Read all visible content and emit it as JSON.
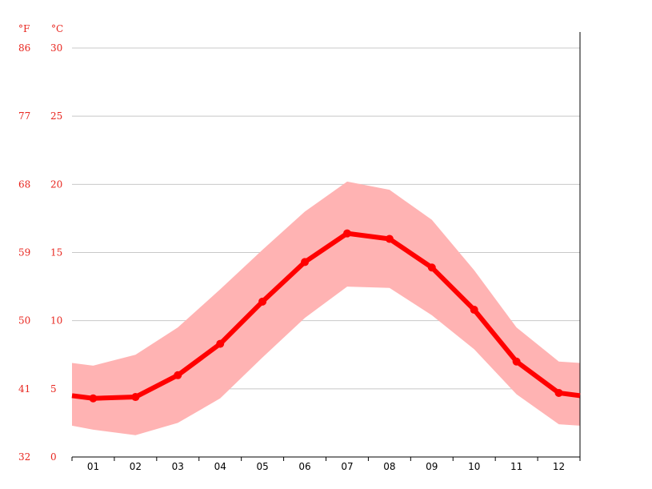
{
  "chart_data": {
    "type": "line",
    "categories": [
      "01",
      "02",
      "03",
      "04",
      "05",
      "06",
      "07",
      "08",
      "09",
      "10",
      "11",
      "12"
    ],
    "series": [
      {
        "values": [
          4.3,
          4.4,
          6.0,
          8.3,
          11.4,
          14.3,
          16.4,
          16.0,
          13.9,
          10.8,
          7.0,
          4.7
        ]
      }
    ],
    "band": {
      "upper": [
        6.7,
        7.5,
        9.5,
        12.3,
        15.2,
        18.0,
        20.2,
        19.6,
        17.4,
        13.7,
        9.5,
        7.0
      ],
      "lower": [
        2.0,
        1.6,
        2.5,
        4.3,
        7.3,
        10.2,
        12.5,
        12.4,
        10.4,
        7.9,
        4.6,
        2.4
      ],
      "edge_upper": 6.9,
      "edge_lower": 2.3
    },
    "series_edge": 4.5,
    "ylim": [
      0,
      30
    ],
    "y_ticks_c": [
      "0",
      "5",
      "10",
      "15",
      "20",
      "25",
      "30"
    ],
    "y_ticks_f": [
      "32",
      "41",
      "50",
      "59",
      "68",
      "77",
      "86"
    ],
    "ylabel_f": "°F",
    "ylabel_c": "°C",
    "grid": true,
    "colors": {
      "line": "#ff0000",
      "band": "#ffb3b3",
      "grid": "#c8c8c8",
      "axis": "#000000",
      "tick_label": "#e8261f"
    }
  }
}
